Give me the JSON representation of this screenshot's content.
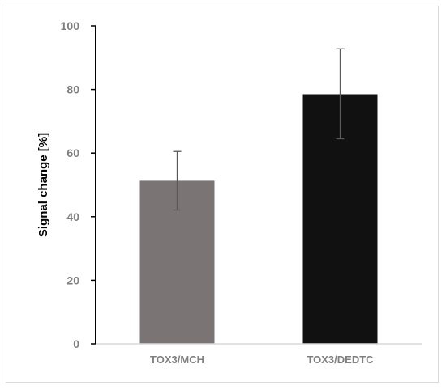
{
  "chart_data": {
    "type": "bar",
    "categories": [
      "TOX3/MCH",
      "TOX3/DEDTC"
    ],
    "values": [
      51.3,
      78.5
    ],
    "error_upper": [
      60.5,
      92.8
    ],
    "error_lower": [
      42.1,
      64.5
    ],
    "bar_colors": [
      "#7a7574",
      "#111111"
    ],
    "ylabel": "Signal change [%]",
    "xlabel": "",
    "title": "",
    "ylim": [
      0,
      100
    ],
    "yticks": [
      0,
      20,
      40,
      60,
      80,
      100
    ],
    "grid": false,
    "legend": false
  }
}
